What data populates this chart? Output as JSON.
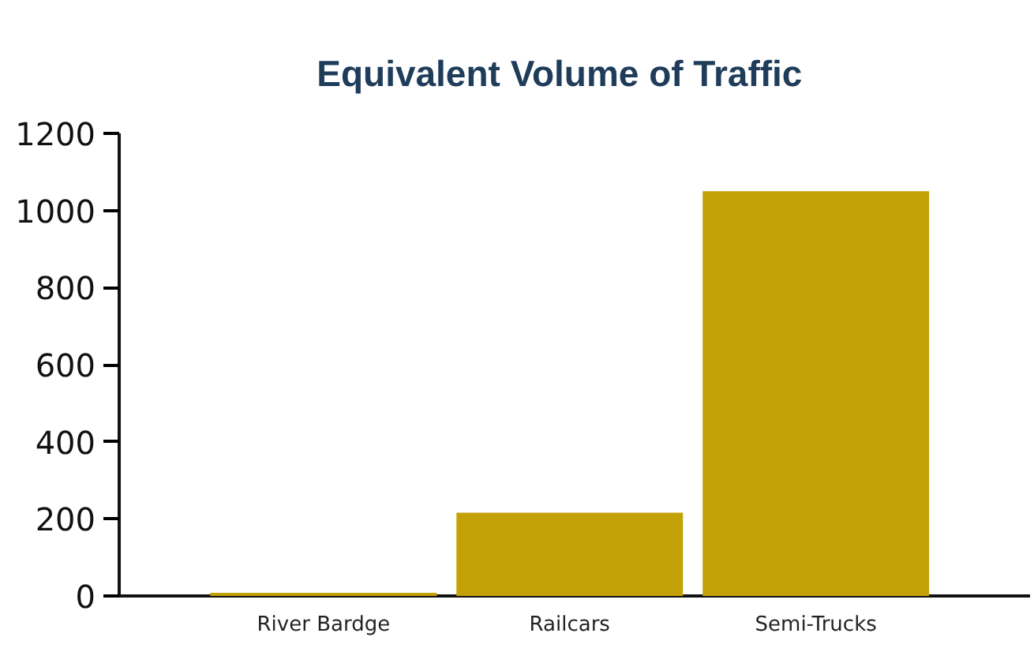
{
  "chart_data": {
    "type": "bar",
    "title": "Equivalent  Volume  of  Traffic",
    "categories": [
      "River Bardge",
      "Railcars",
      "Semi-Trucks"
    ],
    "values": [
      8,
      216,
      1050
    ],
    "color": "#c4a207",
    "ylim": [
      0,
      1200
    ],
    "yticks": [
      0,
      200,
      400,
      600,
      800,
      1000,
      1200
    ],
    "grid": false
  }
}
